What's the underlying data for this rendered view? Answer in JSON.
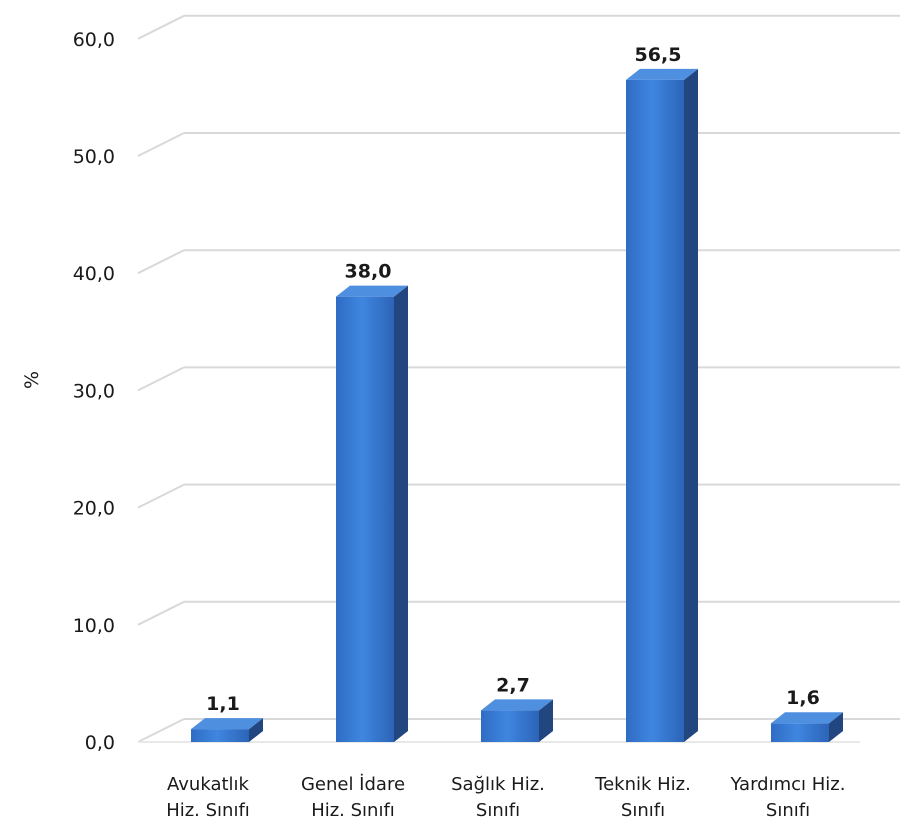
{
  "chart_data": {
    "type": "bar",
    "ylabel": "%",
    "ylim": [
      0,
      60
    ],
    "yticks": [
      "0,0",
      "10,0",
      "20,0",
      "30,0",
      "40,0",
      "50,0",
      "60,0"
    ],
    "categories": [
      [
        "Avukatlık",
        "Hiz. Sınıfı"
      ],
      [
        "Genel İdare",
        "Hiz. Sınıfı"
      ],
      [
        "Sağlık Hiz.",
        "Sınıfı"
      ],
      [
        "Teknik Hiz.",
        "Sınıfı"
      ],
      [
        "Yardımcı Hiz.",
        "Sınıfı"
      ]
    ],
    "values": [
      1.1,
      38.0,
      2.7,
      56.5,
      1.6
    ],
    "value_labels": [
      "1,1",
      "38,0",
      "2,7",
      "56,5",
      "1,6"
    ],
    "grid": true,
    "colors": {
      "bar_front": "#3a7bd5",
      "bar_side": "#22467f",
      "bar_top": "#4f8fe0",
      "grid": "#d9d9d9"
    }
  }
}
